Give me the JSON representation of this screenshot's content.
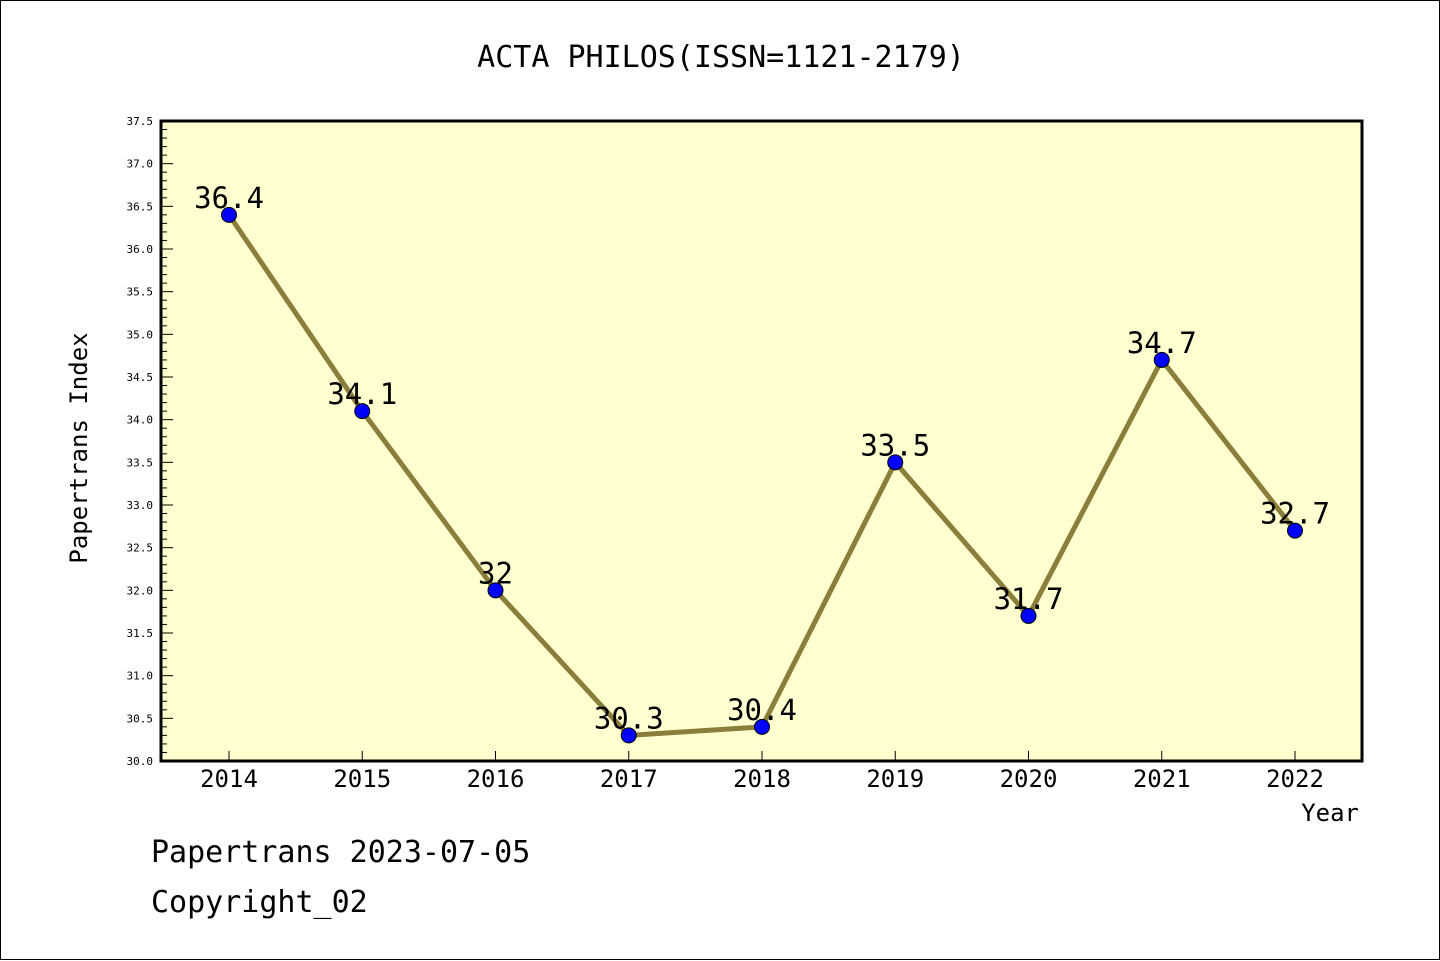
{
  "chart_data": {
    "type": "line",
    "title": "ACTA PHILOS(ISSN=1121-2179)",
    "xlabel": "Year",
    "ylabel": "Papertrans Index",
    "categories": [
      "2014",
      "2015",
      "2016",
      "2017",
      "2018",
      "2019",
      "2020",
      "2021",
      "2022"
    ],
    "series": [
      {
        "values": [
          36.4,
          34.1,
          32,
          30.3,
          30.4,
          33.5,
          31.7,
          34.7,
          32.7
        ],
        "labels": [
          "36.4",
          "34.1",
          "32",
          "30.3",
          "30.4",
          "33.5",
          "31.7",
          "34.7",
          "32.7"
        ]
      }
    ],
    "ylim": [
      30.0,
      37.5
    ],
    "yticks": [
      "30.0",
      "30.5",
      "31.0",
      "31.5",
      "32.0",
      "32.5",
      "33.0",
      "33.5",
      "34.0",
      "34.5",
      "35.0",
      "35.5",
      "36.0",
      "36.5",
      "37.0",
      "37.5"
    ],
    "grid": false,
    "colors": {
      "plot_background": "#ffffd0",
      "line": "#8b7d3a",
      "marker": "#0000ff"
    }
  },
  "footer": {
    "line1": "Papertrans 2023-07-05",
    "line2": "Copyright_02"
  }
}
